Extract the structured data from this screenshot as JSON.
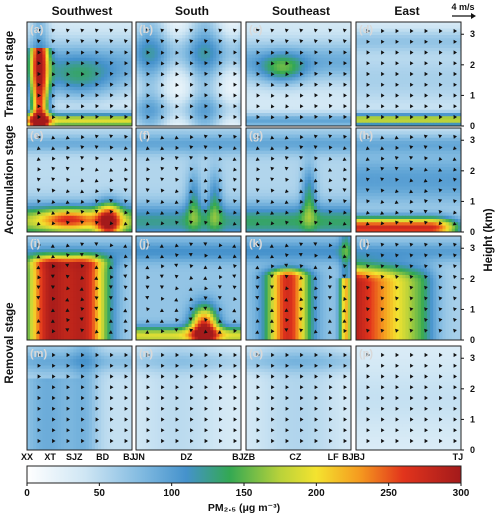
{
  "chart_data": {
    "type": "heatmap",
    "description_variable": "PM2.5 concentration with wind vectors, vertical cross-sections",
    "columns": [
      "Southwest",
      "South",
      "Southeast",
      "East"
    ],
    "rows": [
      "Transport stage",
      "Accumulation stage",
      "Removal  stage",
      "Removal stage"
    ],
    "row_titles": [
      {
        "text": "Transport stage",
        "rows": [
          0
        ]
      },
      {
        "text": "Accumulation stage",
        "rows": [
          1
        ]
      },
      {
        "text": "Removal  stage",
        "rows": [
          2,
          3
        ]
      }
    ],
    "panel_labels": [
      "(a)",
      "(b)",
      "(c)",
      "(d)",
      "(e)",
      "(f)",
      "(g)",
      "(h)",
      "(i)",
      "(j)",
      "(k)",
      "(l)",
      "(m)",
      "(n)",
      "(o)",
      "(p)"
    ],
    "x_labels": [
      [
        {
          "text": "XX",
          "pos": 0.0
        },
        {
          "text": "XT",
          "pos": 0.22
        },
        {
          "text": "SJZ",
          "pos": 0.45
        },
        {
          "text": "BD",
          "pos": 0.72
        },
        {
          "text": "BJ",
          "pos": 0.97
        }
      ],
      [
        {
          "text": "JN",
          "pos": 0.03
        },
        {
          "text": "DZ",
          "pos": 0.48
        },
        {
          "text": "BJ",
          "pos": 0.97
        }
      ],
      [
        {
          "text": "ZB",
          "pos": 0.03
        },
        {
          "text": "CZ",
          "pos": 0.47
        },
        {
          "text": "LF",
          "pos": 0.83
        },
        {
          "text": "BJ",
          "pos": 0.97
        }
      ],
      [
        {
          "text": "BJ",
          "pos": 0.03
        },
        {
          "text": "TJ",
          "pos": 0.97
        }
      ]
    ],
    "y_axis": {
      "label": "Height (km)",
      "ticks": [
        0,
        1,
        2,
        3
      ],
      "range": [
        0,
        3.4
      ]
    },
    "wind_reference": "4 m/s",
    "colorbar": {
      "title": "PM₂.₅ (μg m⁻³)",
      "range": [
        0,
        300
      ],
      "ticks": [
        0,
        50,
        100,
        150,
        200,
        250,
        300
      ],
      "stops": [
        {
          "v": 0,
          "c": "#ffffff"
        },
        {
          "v": 40,
          "c": "#cfe6f4"
        },
        {
          "v": 80,
          "c": "#7fb9e0"
        },
        {
          "v": 110,
          "c": "#4592cc"
        },
        {
          "v": 140,
          "c": "#33a853"
        },
        {
          "v": 175,
          "c": "#b9d23a"
        },
        {
          "v": 200,
          "c": "#f4e32f"
        },
        {
          "v": 230,
          "c": "#f59a1f"
        },
        {
          "v": 260,
          "c": "#e2341c"
        },
        {
          "v": 300,
          "c": "#a31a1b"
        }
      ]
    },
    "ylim": [
      0,
      3.4
    ]
  }
}
